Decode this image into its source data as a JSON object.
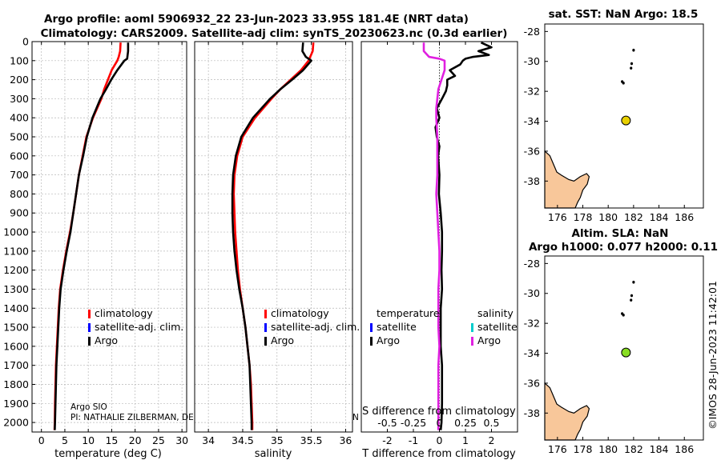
{
  "figure_title_1": "Argo profile: aoml 5906932_22 23-Jun-2023 33.95S 181.4E (NRT data)",
  "figure_title_2": "Climatology: CARS2009. Satellite-adj clim: synTS_20230623.nc (0.3d earlier)",
  "credit_argo": "Argo SIO",
  "credit_pi": "PI: NATHALIE ZILBERMAN, DE",
  "credit_tail": "N",
  "clipped_label": "S difference from climatology",
  "side_stamp": "©IMOS 28-Jun-2023 11:42:01",
  "colors": {
    "climatology": "#ff0000",
    "satellite": "#0000ff",
    "argo": "#000000",
    "sat_salinity": "#00cccc",
    "argo_salinity": "#e020e0",
    "land": "#f8c79a",
    "dot1": "#e8d000",
    "dot2": "#88dd22"
  },
  "chart_data": [
    {
      "type": "line",
      "id": "temperature",
      "xlabel": "temperature (deg C)",
      "ylabel": "",
      "xlim": [
        -2,
        31
      ],
      "ylim": [
        2050,
        0
      ],
      "xticks": [
        0,
        5,
        10,
        15,
        20,
        25,
        30
      ],
      "xtick_labels": [
        "0",
        "5",
        "10",
        "15",
        "20",
        "25",
        "30"
      ],
      "yticks": [
        0,
        100,
        200,
        300,
        400,
        500,
        600,
        700,
        800,
        900,
        1000,
        1100,
        1200,
        1300,
        1400,
        1500,
        1600,
        1700,
        1800,
        1900,
        2000
      ],
      "ytick_labels": [
        "0",
        "100",
        "200",
        "300",
        "400",
        "500",
        "600",
        "700",
        "800",
        "900",
        "1000",
        "1100",
        "1200",
        "1300",
        "1400",
        "1500",
        "1600",
        "1700",
        "1800",
        "1900",
        "2000"
      ],
      "legend": [
        "climatology",
        "satellite-adj. clim.",
        "Argo"
      ],
      "series": [
        {
          "name": "climatology",
          "color": "#ff0000",
          "depth": [
            5,
            50,
            80,
            100,
            150,
            200,
            250,
            300,
            400,
            500,
            600,
            700,
            800,
            900,
            1000,
            1100,
            1200,
            1300,
            1400,
            1500,
            1600,
            1700,
            1800,
            1900,
            2000,
            2040
          ],
          "values": [
            16.9,
            16.8,
            16.5,
            16.2,
            15.0,
            14.2,
            13.4,
            12.8,
            11.0,
            9.6,
            8.8,
            8.0,
            7.4,
            6.8,
            6.1,
            5.3,
            4.6,
            4.0,
            3.7,
            3.5,
            3.3,
            3.1,
            3.0,
            2.9,
            2.85,
            2.8
          ]
        },
        {
          "name": "Argo",
          "color": "#000000",
          "depth": [
            5,
            50,
            90,
            100,
            150,
            200,
            250,
            300,
            400,
            500,
            600,
            700,
            800,
            900,
            1000,
            1100,
            1200,
            1300,
            1400,
            1500,
            1600,
            1700,
            1800,
            1900,
            2000,
            2040
          ],
          "values": [
            18.5,
            18.5,
            18.3,
            17.7,
            16.2,
            14.9,
            13.8,
            12.6,
            10.9,
            9.7,
            8.9,
            8.0,
            7.4,
            6.8,
            6.2,
            5.4,
            4.7,
            4.1,
            3.8,
            3.6,
            3.4,
            3.2,
            3.1,
            3.0,
            2.9,
            2.85
          ]
        }
      ]
    },
    {
      "type": "line",
      "id": "salinity",
      "xlabel": "salinity",
      "ylabel": "",
      "xlim": [
        33.8,
        36.1
      ],
      "ylim": [
        2050,
        0
      ],
      "xticks": [
        34,
        34.5,
        35,
        35.5,
        36
      ],
      "xtick_labels": [
        "34",
        "34.5",
        "35",
        "35.5",
        "36"
      ],
      "legend": [
        "climatology",
        "satellite-adj. clim.",
        "Argo"
      ],
      "series": [
        {
          "name": "climatology",
          "color": "#ff0000",
          "depth": [
            5,
            50,
            100,
            150,
            200,
            250,
            300,
            400,
            500,
            600,
            700,
            800,
            900,
            1000,
            1100,
            1200,
            1300,
            1400,
            1500,
            1600,
            1700,
            1800,
            1900,
            2000,
            2040
          ],
          "values": [
            35.53,
            35.52,
            35.46,
            35.35,
            35.2,
            35.05,
            34.92,
            34.68,
            34.5,
            34.42,
            34.38,
            34.37,
            34.38,
            34.39,
            34.41,
            34.43,
            34.46,
            34.5,
            34.54,
            34.57,
            34.6,
            34.62,
            34.63,
            34.64,
            34.64
          ]
        },
        {
          "name": "Argo",
          "color": "#000000",
          "depth": [
            5,
            50,
            80,
            100,
            150,
            200,
            250,
            300,
            400,
            500,
            600,
            700,
            800,
            900,
            1000,
            1100,
            1200,
            1300,
            1400,
            1500,
            1600,
            1700,
            1800,
            1900,
            2000,
            2040
          ],
          "values": [
            35.38,
            35.37,
            35.42,
            35.5,
            35.38,
            35.22,
            35.05,
            34.9,
            34.65,
            34.48,
            34.4,
            34.36,
            34.35,
            34.35,
            34.36,
            34.38,
            34.41,
            34.45,
            34.5,
            34.54,
            34.57,
            34.6,
            34.61,
            34.62,
            34.63,
            34.63
          ]
        }
      ]
    },
    {
      "type": "line",
      "id": "difference",
      "xlabel": "T difference from climatology",
      "ylabel": "",
      "xlim": [
        -3,
        3
      ],
      "ylim": [
        2050,
        0
      ],
      "xticks": [
        -2,
        -1,
        0,
        1,
        2
      ],
      "xtick_labels": [
        "-2",
        "-1",
        "0",
        "1",
        "2"
      ],
      "top_xticks": [
        -0.5,
        -0.25,
        0,
        0.25,
        0.5
      ],
      "top_xtick_labels": [
        "-0.5",
        "-0.25",
        "0",
        "0.25",
        "0.5"
      ],
      "legend_temperature_title": "temperature",
      "legend_salinity_title": "salinity",
      "legend_temperature": [
        "satellite",
        "Argo"
      ],
      "legend_salinity": [
        "satellite",
        "Argo"
      ],
      "series": [
        {
          "name": "T difference (Argo)",
          "color": "#000000",
          "depth": [
            5,
            30,
            50,
            70,
            80,
            90,
            100,
            120,
            150,
            180,
            200,
            230,
            260,
            300,
            350,
            400,
            450,
            500,
            550,
            600,
            700,
            800,
            900,
            1000,
            1100,
            1200,
            1300,
            1400,
            1500,
            1600,
            1700,
            1800,
            1900,
            2000,
            2040
          ],
          "values": [
            1.6,
            2.0,
            1.5,
            1.9,
            1.3,
            1.0,
            0.9,
            0.8,
            0.4,
            0.6,
            0.3,
            0.3,
            0.25,
            0.1,
            -0.1,
            0.0,
            -0.15,
            -0.1,
            0.0,
            -0.05,
            0.0,
            -0.02,
            0.05,
            0.1,
            0.1,
            0.08,
            0.1,
            0.05,
            0.05,
            0.05,
            0.1,
            0.1,
            0.1,
            0.08,
            0.05
          ]
        },
        {
          "name": "S difference (Argo)",
          "color": "#e020e0",
          "depth": [
            5,
            50,
            80,
            90,
            100,
            150,
            200,
            250,
            300,
            350,
            400,
            500,
            600,
            700,
            800,
            900,
            1000,
            1100,
            1200,
            1300,
            1400,
            1500,
            1600,
            1700,
            1800,
            1900,
            2000,
            2040
          ],
          "values": [
            -0.15,
            -0.15,
            -0.1,
            0.0,
            0.05,
            0.05,
            0.02,
            -0.01,
            -0.02,
            -0.03,
            -0.03,
            -0.02,
            -0.02,
            -0.02,
            -0.03,
            -0.02,
            -0.01,
            0.0,
            0.0,
            -0.01,
            -0.01,
            -0.01,
            0.0,
            -0.01,
            -0.01,
            -0.01,
            -0.01,
            -0.01
          ]
        }
      ]
    },
    {
      "type": "scatter",
      "id": "map_sst",
      "title": "sat. SST: NaN Argo: 18.5",
      "xlim": [
        175,
        187.5
      ],
      "ylim": [
        -39.8,
        -27.5
      ],
      "xticks": [
        176,
        178,
        180,
        182,
        184,
        186
      ],
      "xtick_labels": [
        "176",
        "178",
        "180",
        "182",
        "184",
        "186"
      ],
      "yticks": [
        -28,
        -30,
        -32,
        -34,
        -36,
        -38
      ],
      "ytick_labels": [
        "-28",
        "-30",
        "-32",
        "-34",
        "-36",
        "-38"
      ],
      "islands": [
        [
          182.0,
          -29.25
        ],
        [
          181.85,
          -30.15
        ],
        [
          181.8,
          -30.45
        ],
        [
          181.1,
          -31.35
        ],
        [
          181.2,
          -31.45
        ]
      ],
      "argo_position": [
        181.4,
        -33.95
      ],
      "marker_color": "#e8d000"
    },
    {
      "type": "scatter",
      "id": "map_sla",
      "title": "Altim. SLA: NaN",
      "subtitle": "Argo h1000: 0.077 h2000: 0.11",
      "xlim": [
        175,
        187.5
      ],
      "ylim": [
        -39.8,
        -27.5
      ],
      "xticks": [
        176,
        178,
        180,
        182,
        184,
        186
      ],
      "xtick_labels": [
        "176",
        "178",
        "180",
        "182",
        "184",
        "186"
      ],
      "yticks": [
        -28,
        -30,
        -32,
        -34,
        -36,
        -38
      ],
      "ytick_labels": [
        "-28",
        "-30",
        "-32",
        "-34",
        "-36",
        "-38"
      ],
      "islands": [
        [
          182.0,
          -29.25
        ],
        [
          181.85,
          -30.15
        ],
        [
          181.8,
          -30.45
        ],
        [
          181.1,
          -31.35
        ],
        [
          181.2,
          -31.45
        ]
      ],
      "argo_position": [
        181.4,
        -33.95
      ],
      "marker_color": "#88dd22"
    }
  ]
}
